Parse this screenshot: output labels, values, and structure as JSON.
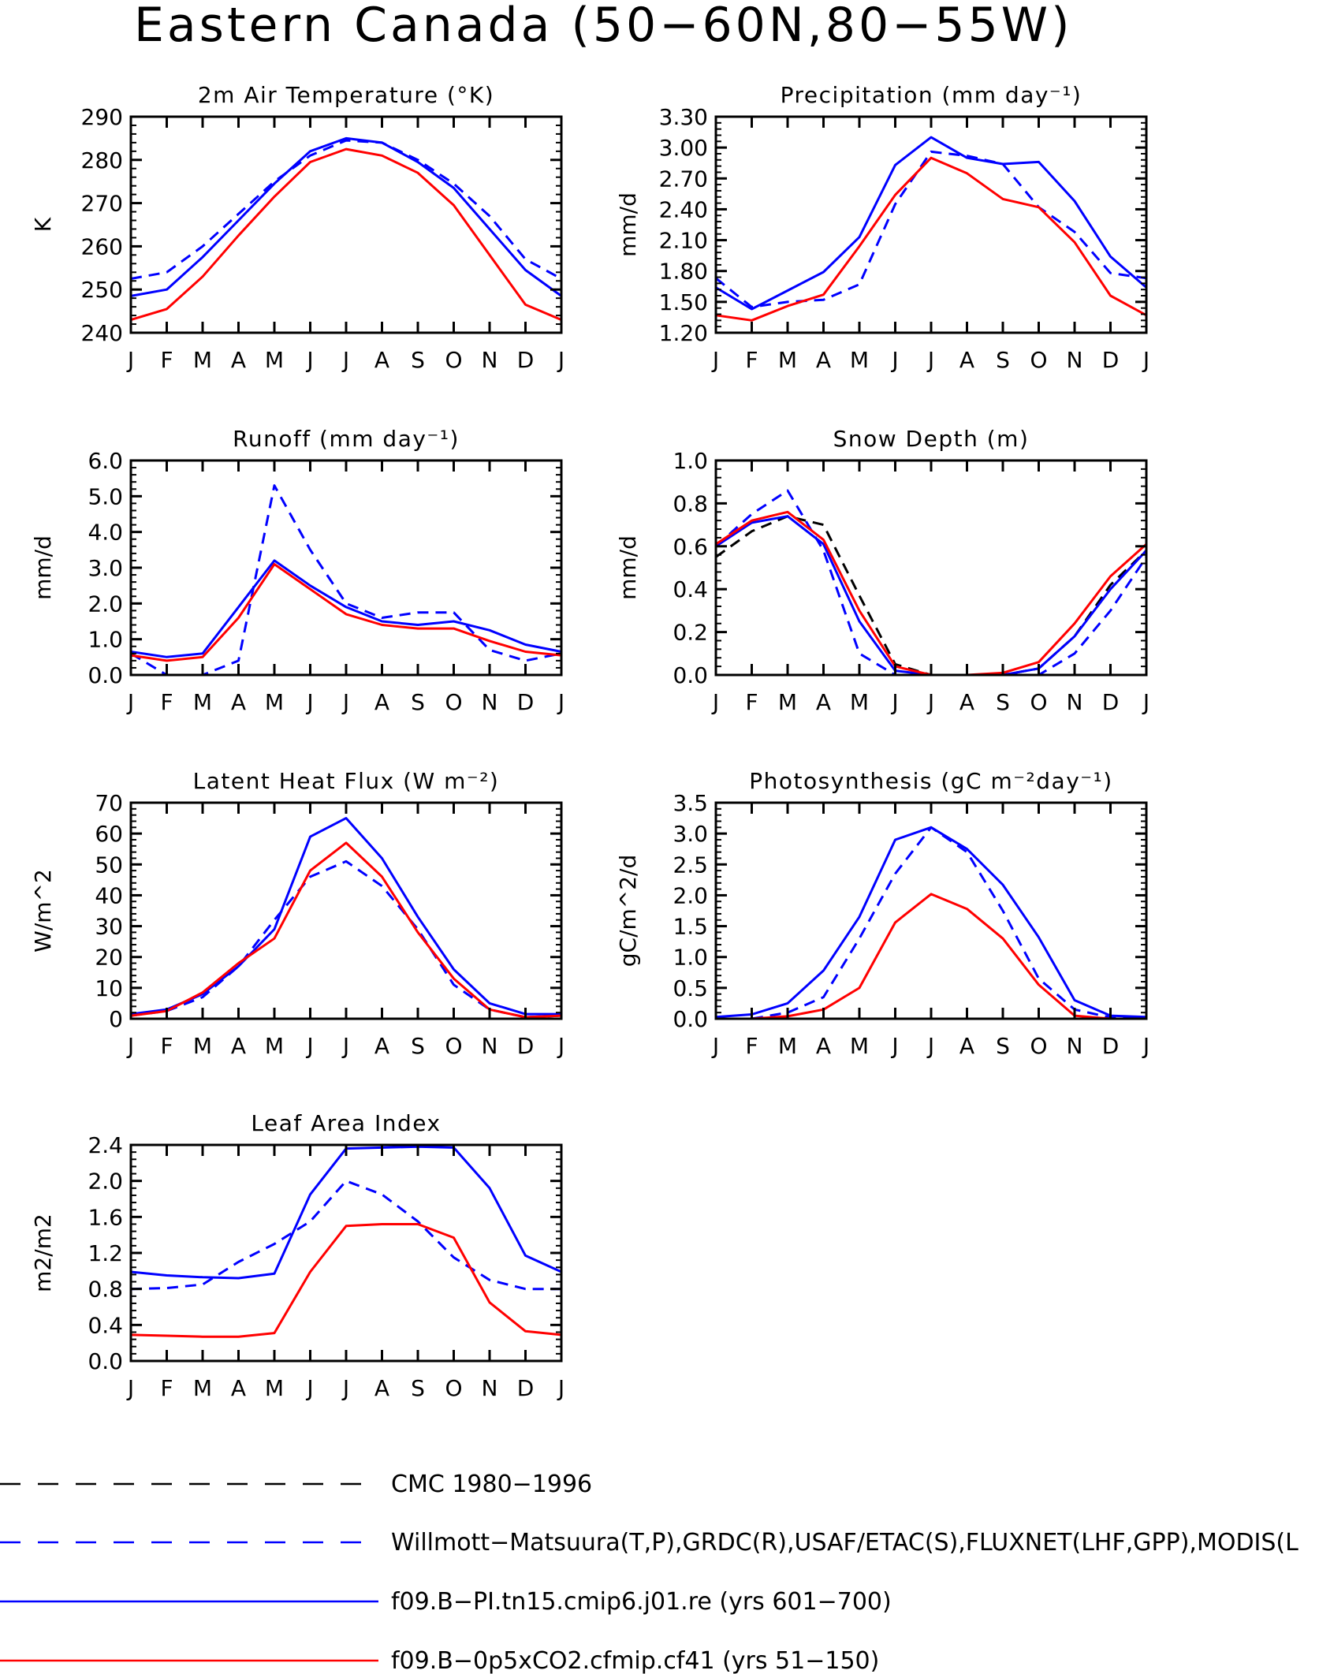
{
  "title": "Eastern Canada (50−60N,80−55W)",
  "months": [
    "J",
    "F",
    "M",
    "A",
    "M",
    "J",
    "J",
    "A",
    "S",
    "O",
    "N",
    "D",
    "J"
  ],
  "colors": {
    "obs_black": "#000000",
    "obs_blue": "#0000ff",
    "model_blue": "#0000ff",
    "model_red": "#ff0000"
  },
  "legend": [
    {
      "label": "CMC 1980−1996",
      "color": "#000000",
      "style": "dashed"
    },
    {
      "label": "Willmott−Matsuura(T,P),GRDC(R),USAF/ETAC(S),FLUXNET(LHF,GPP),MODIS(L",
      "color": "#0000ff",
      "style": "dashed"
    },
    {
      "label": "f09.B−PI.tn15.cmip6.j01.re (yrs 601−700)",
      "color": "#0000ff",
      "style": "solid"
    },
    {
      "label": "f09.B−0p5xCO2.cfmip.cf41 (yrs 51−150)",
      "color": "#ff0000",
      "style": "solid"
    }
  ],
  "chart_data": [
    {
      "type": "line",
      "title": "2m Air Temperature (°K)",
      "ylabel": "K",
      "ylim": [
        240,
        290
      ],
      "yticks": [
        "240",
        "250",
        "260",
        "270",
        "280",
        "290"
      ],
      "x": [
        "J",
        "F",
        "M",
        "A",
        "M",
        "J",
        "J",
        "A",
        "S",
        "O",
        "N",
        "D",
        "J"
      ],
      "series": [
        {
          "values": [
            252.5,
            254,
            260,
            267.5,
            275,
            281,
            284.5,
            284,
            280,
            274.5,
            267,
            257,
            252.5
          ],
          "color": "#0000ff",
          "style": "dashed"
        },
        {
          "values": [
            248.5,
            250,
            257.5,
            266,
            274.5,
            282,
            285,
            284,
            279.5,
            273.5,
            264,
            254.5,
            248.5
          ],
          "color": "#0000ff",
          "style": "solid"
        },
        {
          "values": [
            243,
            245.5,
            253,
            262.5,
            271.5,
            279.5,
            282.5,
            281,
            277,
            269.5,
            258,
            246.5,
            243
          ],
          "color": "#ff0000",
          "style": "solid"
        }
      ]
    },
    {
      "type": "line",
      "title": "Precipitation (mm day⁻¹)",
      "ylabel": "mm/d",
      "ylim": [
        1.2,
        3.3
      ],
      "yticks": [
        "1.20",
        "1.50",
        "1.80",
        "2.10",
        "2.40",
        "2.70",
        "3.00",
        "3.30"
      ],
      "x": [
        "J",
        "F",
        "M",
        "A",
        "M",
        "J",
        "J",
        "A",
        "S",
        "O",
        "N",
        "D",
        "J"
      ],
      "series": [
        {
          "values": [
            1.73,
            1.45,
            1.5,
            1.52,
            1.67,
            2.45,
            2.96,
            2.92,
            2.84,
            2.42,
            2.18,
            1.78,
            1.73
          ],
          "color": "#0000ff",
          "style": "dashed"
        },
        {
          "values": [
            1.64,
            1.43,
            1.61,
            1.79,
            2.13,
            2.83,
            3.1,
            2.9,
            2.84,
            2.86,
            2.48,
            1.94,
            1.64
          ],
          "color": "#0000ff",
          "style": "solid"
        },
        {
          "values": [
            1.37,
            1.32,
            1.46,
            1.57,
            2.04,
            2.54,
            2.9,
            2.75,
            2.5,
            2.42,
            2.08,
            1.56,
            1.37
          ],
          "color": "#ff0000",
          "style": "solid"
        }
      ]
    },
    {
      "type": "line",
      "title": "Runoff (mm day⁻¹)",
      "ylabel": "mm/d",
      "ylim": [
        0,
        6
      ],
      "yticks": [
        "0.0",
        "1.0",
        "2.0",
        "3.0",
        "4.0",
        "5.0",
        "6.0"
      ],
      "x": [
        "J",
        "F",
        "M",
        "A",
        "M",
        "J",
        "J",
        "A",
        "S",
        "O",
        "N",
        "D",
        "J"
      ],
      "series": [
        {
          "values": [
            0.6,
            0.0,
            0.0,
            0.4,
            5.3,
            3.5,
            2.0,
            1.6,
            1.75,
            1.75,
            0.7,
            0.4,
            0.6
          ],
          "color": "#0000ff",
          "style": "dashed"
        },
        {
          "values": [
            0.65,
            0.5,
            0.6,
            1.9,
            3.2,
            2.5,
            1.9,
            1.5,
            1.4,
            1.5,
            1.25,
            0.85,
            0.65
          ],
          "color": "#0000ff",
          "style": "solid"
        },
        {
          "values": [
            0.55,
            0.4,
            0.5,
            1.6,
            3.1,
            2.4,
            1.7,
            1.4,
            1.3,
            1.3,
            0.95,
            0.65,
            0.55
          ],
          "color": "#ff0000",
          "style": "solid"
        }
      ]
    },
    {
      "type": "line",
      "title": "Snow Depth (m)",
      "ylabel": "mm/d",
      "ylim": [
        0,
        1
      ],
      "yticks": [
        "0.0",
        "0.2",
        "0.4",
        "0.6",
        "0.8",
        "1.0"
      ],
      "x": [
        "J",
        "F",
        "M",
        "A",
        "M",
        "J",
        "J",
        "A",
        "S",
        "O",
        "N",
        "D",
        "J"
      ],
      "series": [
        {
          "values": [
            0.55,
            0.67,
            0.74,
            0.7,
            0.37,
            0.05,
            0.0,
            0.0,
            0.0,
            0.03,
            0.18,
            0.42,
            0.58
          ],
          "color": "#000000",
          "style": "dashed"
        },
        {
          "values": [
            0.6,
            0.75,
            0.86,
            0.58,
            0.1,
            0.0,
            0.0,
            0.0,
            0.0,
            0.0,
            0.1,
            0.3,
            0.55
          ],
          "color": "#0000ff",
          "style": "dashed"
        },
        {
          "values": [
            0.6,
            0.71,
            0.74,
            0.61,
            0.25,
            0.02,
            0.0,
            0.0,
            0.0,
            0.03,
            0.18,
            0.4,
            0.58
          ],
          "color": "#0000ff",
          "style": "solid"
        },
        {
          "values": [
            0.61,
            0.72,
            0.76,
            0.63,
            0.3,
            0.04,
            0.0,
            0.0,
            0.01,
            0.06,
            0.24,
            0.46,
            0.61
          ],
          "color": "#ff0000",
          "style": "solid"
        }
      ]
    },
    {
      "type": "line",
      "title": "Latent Heat Flux (W m⁻²)",
      "ylabel": "W/m^2",
      "ylim": [
        0,
        70
      ],
      "yticks": [
        "0",
        "10",
        "20",
        "30",
        "40",
        "50",
        "60",
        "70"
      ],
      "x": [
        "J",
        "F",
        "M",
        "A",
        "M",
        "J",
        "J",
        "A",
        "S",
        "O",
        "N",
        "D",
        "J"
      ],
      "series": [
        {
          "values": [
            1,
            2.5,
            7,
            17,
            32,
            46,
            51,
            43,
            29,
            11,
            3,
            0.5,
            1
          ],
          "color": "#0000ff",
          "style": "dashed"
        },
        {
          "values": [
            1.5,
            3,
            8,
            17,
            29,
            59,
            65,
            52,
            33,
            16,
            5,
            1.5,
            1.5
          ],
          "color": "#0000ff",
          "style": "solid"
        },
        {
          "values": [
            1,
            2.5,
            8.5,
            18,
            26,
            48,
            57,
            46,
            28,
            13,
            3,
            0.5,
            1
          ],
          "color": "#ff0000",
          "style": "solid"
        }
      ]
    },
    {
      "type": "line",
      "title": "Photosynthesis (gC m⁻²day⁻¹)",
      "ylabel": "gC/m^2/d",
      "ylim": [
        0,
        3.5
      ],
      "yticks": [
        "0.0",
        "0.5",
        "1.0",
        "1.5",
        "2.0",
        "2.5",
        "3.0",
        "3.5"
      ],
      "x": [
        "J",
        "F",
        "M",
        "A",
        "M",
        "J",
        "J",
        "A",
        "S",
        "O",
        "N",
        "D",
        "J"
      ],
      "series": [
        {
          "values": [
            0.0,
            0.0,
            0.1,
            0.35,
            1.3,
            2.35,
            3.1,
            2.7,
            1.75,
            0.65,
            0.15,
            0.02,
            0.0
          ],
          "color": "#0000ff",
          "style": "dashed"
        },
        {
          "values": [
            0.03,
            0.07,
            0.25,
            0.78,
            1.65,
            2.9,
            3.1,
            2.75,
            2.17,
            1.32,
            0.3,
            0.05,
            0.03
          ],
          "color": "#0000ff",
          "style": "solid"
        },
        {
          "values": [
            0.0,
            0.0,
            0.04,
            0.15,
            0.5,
            1.56,
            2.02,
            1.78,
            1.3,
            0.55,
            0.05,
            0.0,
            0.0
          ],
          "color": "#ff0000",
          "style": "solid"
        }
      ]
    },
    {
      "type": "line",
      "title": "Leaf Area Index",
      "ylabel": "m2/m2",
      "ylim": [
        0,
        2.4
      ],
      "yticks": [
        "0.0",
        "0.4",
        "0.8",
        "1.2",
        "1.6",
        "2.0",
        "2.4"
      ],
      "x": [
        "J",
        "F",
        "M",
        "A",
        "M",
        "J",
        "J",
        "A",
        "S",
        "O",
        "N",
        "D",
        "J"
      ],
      "series": [
        {
          "values": [
            0.8,
            0.81,
            0.85,
            1.1,
            1.3,
            1.55,
            2.0,
            1.85,
            1.55,
            1.15,
            0.9,
            0.8,
            0.8
          ],
          "color": "#0000ff",
          "style": "dashed"
        },
        {
          "values": [
            0.99,
            0.95,
            0.93,
            0.92,
            0.97,
            1.85,
            2.36,
            2.37,
            2.38,
            2.37,
            1.92,
            1.17,
            0.99
          ],
          "color": "#0000ff",
          "style": "solid"
        },
        {
          "values": [
            0.29,
            0.28,
            0.27,
            0.27,
            0.31,
            0.99,
            1.5,
            1.52,
            1.52,
            1.37,
            0.65,
            0.33,
            0.29
          ],
          "color": "#ff0000",
          "style": "solid"
        }
      ]
    }
  ]
}
